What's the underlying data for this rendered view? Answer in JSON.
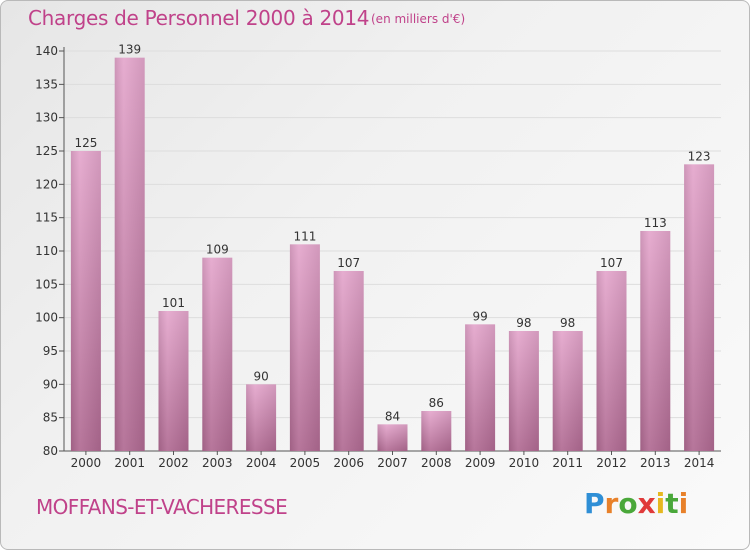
{
  "header": {
    "title": "Charges de Personnel 2000 à 2014",
    "subtitle": "(en milliers d'€)"
  },
  "footer": {
    "commune": "MOFFANS-ET-VACHERESSE",
    "logo": "Proxiti"
  },
  "colors": {
    "bar_light": "#e4a6cc",
    "bar_dark": "#b06a92",
    "title": "#c0428a",
    "grid": "#dddddd"
  },
  "chart_data": {
    "type": "bar",
    "title": "Charges de Personnel 2000 à 2014",
    "subtitle": "(en milliers d'€)",
    "xlabel": "",
    "ylabel": "",
    "categories": [
      "2000",
      "2001",
      "2002",
      "2003",
      "2004",
      "2005",
      "2006",
      "2007",
      "2008",
      "2009",
      "2010",
      "2011",
      "2012",
      "2013",
      "2014"
    ],
    "values": [
      125,
      139,
      101,
      109,
      90,
      111,
      107,
      84,
      86,
      99,
      98,
      98,
      107,
      113,
      123
    ],
    "ylim": [
      80,
      140
    ],
    "yticks": [
      80,
      85,
      90,
      95,
      100,
      105,
      110,
      115,
      120,
      125,
      130,
      135,
      140
    ],
    "grid": true,
    "legend": "none"
  }
}
